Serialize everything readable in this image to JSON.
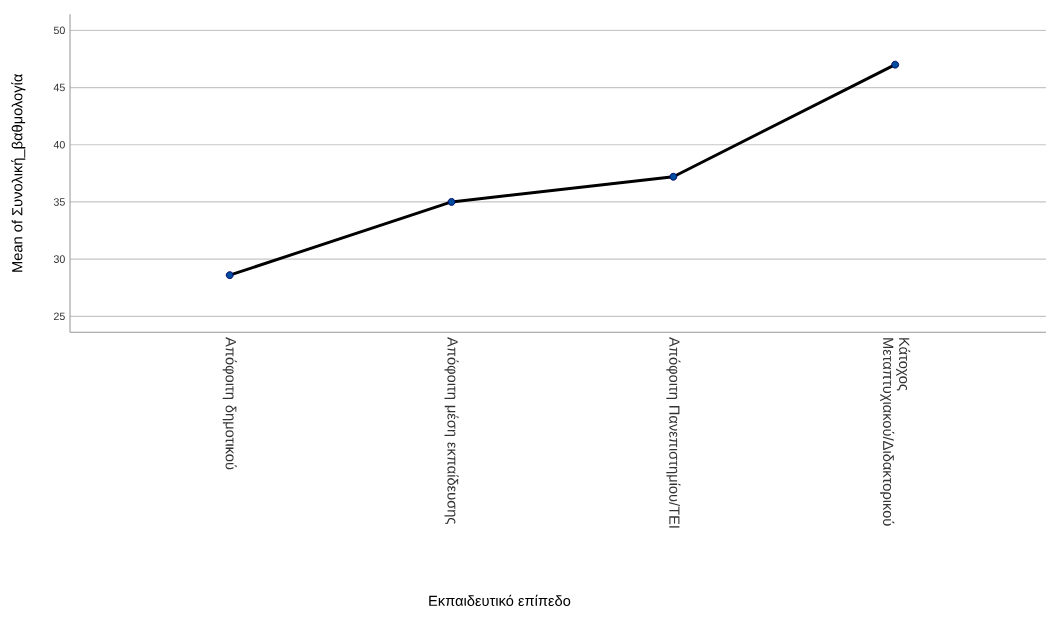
{
  "chart_data": {
    "type": "line",
    "xlabel": "Εκπαιδευτικό επίπεδο",
    "ylabel": "Mean of Συνολική_βαθμολογία",
    "categories": [
      "Απόφοιτη δημοτικού",
      "Απόφοιτη μέση εκπαίδευσης",
      "Απόφοιτη Πανεπιστημίου/ΤΕΙ",
      "Κάτοχος Μεταπτυχιακού/Διδακτορικού"
    ],
    "series": [
      {
        "color": "#000000",
        "values": [
          28.6,
          35.0,
          37.2,
          47.0
        ]
      }
    ],
    "ylim": [
      23.6,
      51.4
    ],
    "yticks": [
      25,
      30,
      35,
      40,
      45,
      50
    ],
    "grid": "y",
    "marker": "circle",
    "line_style": "solid"
  }
}
